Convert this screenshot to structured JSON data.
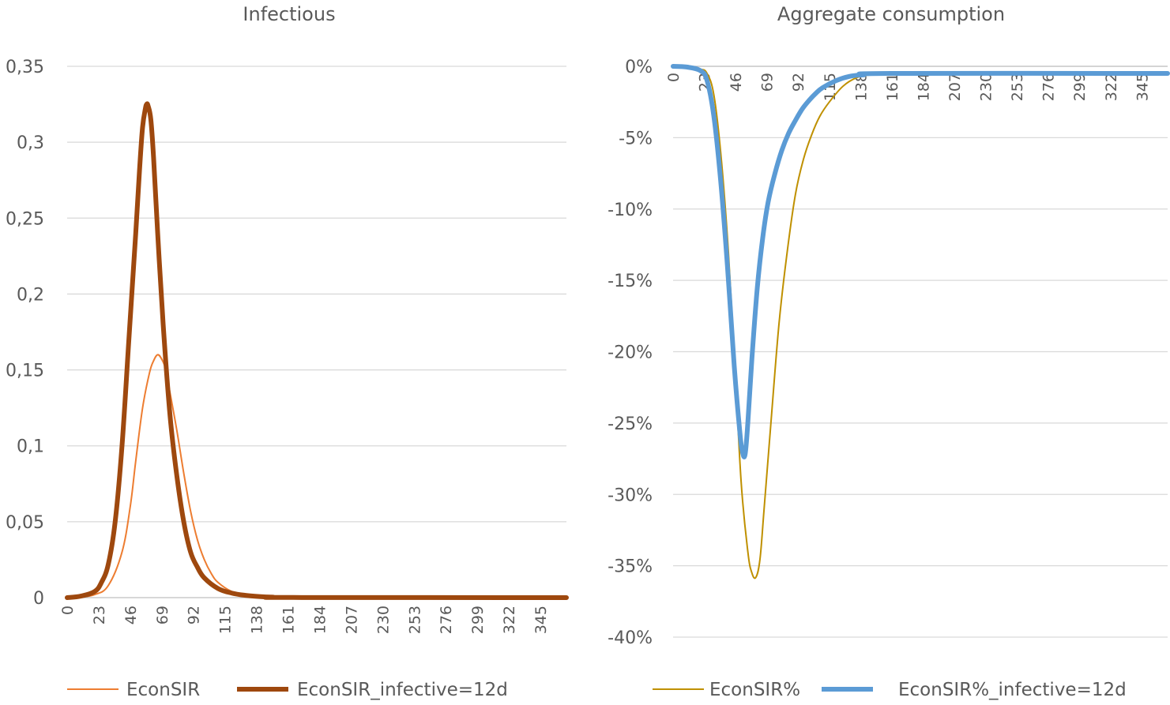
{
  "chart_data": [
    {
      "type": "line",
      "title": "Infectious",
      "xlabel": "",
      "ylabel": "",
      "xlim": [
        0,
        364
      ],
      "ylim": [
        0,
        0.35
      ],
      "yticks": [
        0,
        0.05,
        0.1,
        0.15,
        0.2,
        0.25,
        0.3,
        0.35
      ],
      "ytick_labels": [
        "0",
        "0,05",
        "0,1",
        "0,15",
        "0,2",
        "0,25",
        "0,3",
        "0,35"
      ],
      "xtick_labels": [
        "0",
        "23",
        "46",
        "69",
        "92",
        "115",
        "138",
        "161",
        "184",
        "207",
        "230",
        "253",
        "276",
        "299",
        "322",
        "345"
      ],
      "xtick_values": [
        0,
        23,
        46,
        69,
        92,
        115,
        138,
        161,
        184,
        207,
        230,
        253,
        276,
        299,
        322,
        345
      ],
      "grid": true,
      "legend_position": "bottom",
      "series": [
        {
          "name": "EconSIR",
          "color": "#ED7D31",
          "width": 2,
          "points": [
            [
              0,
              0
            ],
            [
              10,
              0.0005
            ],
            [
              20,
              0.002
            ],
            [
              30,
              0.008
            ],
            [
              40,
              0.03
            ],
            [
              46,
              0.06
            ],
            [
              50,
              0.09
            ],
            [
              55,
              0.125
            ],
            [
              60,
              0.148
            ],
            [
              63,
              0.156
            ],
            [
              66,
              0.16
            ],
            [
              69,
              0.157
            ],
            [
              72,
              0.15
            ],
            [
              75,
              0.135
            ],
            [
              80,
              0.11
            ],
            [
              85,
              0.082
            ],
            [
              90,
              0.057
            ],
            [
              95,
              0.038
            ],
            [
              100,
              0.025
            ],
            [
              105,
              0.016
            ],
            [
              110,
              0.01
            ],
            [
              120,
              0.004
            ],
            [
              130,
              0.0018
            ],
            [
              140,
              0.0008
            ],
            [
              150,
              0.0003
            ],
            [
              160,
              0.0001
            ],
            [
              364,
              0
            ]
          ]
        },
        {
          "name": "EconSIR_infective=12d",
          "color": "#9E480E",
          "width": 6,
          "points": [
            [
              0,
              0
            ],
            [
              10,
              0.001
            ],
            [
              20,
              0.004
            ],
            [
              25,
              0.01
            ],
            [
              30,
              0.022
            ],
            [
              35,
              0.05
            ],
            [
              40,
              0.1
            ],
            [
              45,
              0.17
            ],
            [
              50,
              0.24
            ],
            [
              53,
              0.285
            ],
            [
              55,
              0.31
            ],
            [
              57,
              0.322
            ],
            [
              58,
              0.325
            ],
            [
              59,
              0.324
            ],
            [
              61,
              0.315
            ],
            [
              63,
              0.29
            ],
            [
              66,
              0.24
            ],
            [
              70,
              0.18
            ],
            [
              75,
              0.12
            ],
            [
              80,
              0.08
            ],
            [
              85,
              0.05
            ],
            [
              90,
              0.03
            ],
            [
              95,
              0.02
            ],
            [
              100,
              0.013
            ],
            [
              110,
              0.006
            ],
            [
              120,
              0.003
            ],
            [
              130,
              0.0015
            ],
            [
              140,
              0.0007
            ],
            [
              150,
              0.0003
            ],
            [
              165,
              0.0001
            ],
            [
              364,
              0
            ]
          ]
        }
      ]
    },
    {
      "type": "line",
      "title": "Aggregate consumption",
      "xlabel": "",
      "ylabel": "",
      "xlim": [
        0,
        364
      ],
      "ylim": [
        -0.4,
        0
      ],
      "yticks": [
        0,
        -0.05,
        -0.1,
        -0.15,
        -0.2,
        -0.25,
        -0.3,
        -0.35,
        -0.4
      ],
      "ytick_labels": [
        "0%",
        "-5%",
        "-10%",
        "-15%",
        "-20%",
        "-25%",
        "-30%",
        "-35%",
        "-40%"
      ],
      "xtick_labels": [
        "0",
        "23",
        "46",
        "69",
        "92",
        "115",
        "138",
        "161",
        "184",
        "207",
        "230",
        "253",
        "276",
        "299",
        "322",
        "345"
      ],
      "xtick_values": [
        0,
        23,
        46,
        69,
        92,
        115,
        138,
        161,
        184,
        207,
        230,
        253,
        276,
        299,
        322,
        345
      ],
      "grid": true,
      "legend_position": "bottom",
      "series": [
        {
          "name": "EconSIR%",
          "color": "#BF9000",
          "width": 2,
          "points": [
            [
              0,
              0
            ],
            [
              10,
              -0.0005
            ],
            [
              20,
              -0.002
            ],
            [
              25,
              -0.005
            ],
            [
              30,
              -0.02
            ],
            [
              35,
              -0.06
            ],
            [
              40,
              -0.12
            ],
            [
              45,
              -0.2
            ],
            [
              50,
              -0.29
            ],
            [
              55,
              -0.34
            ],
            [
              58,
              -0.355
            ],
            [
              61,
              -0.358
            ],
            [
              64,
              -0.345
            ],
            [
              67,
              -0.31
            ],
            [
              72,
              -0.25
            ],
            [
              78,
              -0.18
            ],
            [
              84,
              -0.13
            ],
            [
              90,
              -0.09
            ],
            [
              96,
              -0.065
            ],
            [
              102,
              -0.048
            ],
            [
              108,
              -0.035
            ],
            [
              115,
              -0.025
            ],
            [
              125,
              -0.014
            ],
            [
              135,
              -0.008
            ],
            [
              145,
              -0.006
            ],
            [
              160,
              -0.005
            ],
            [
              364,
              -0.005
            ]
          ]
        },
        {
          "name": "EconSIR%_infective=12d",
          "color": "#5B9BD5",
          "width": 6,
          "points": [
            [
              0,
              0
            ],
            [
              10,
              -0.0005
            ],
            [
              20,
              -0.003
            ],
            [
              25,
              -0.01
            ],
            [
              30,
              -0.035
            ],
            [
              35,
              -0.08
            ],
            [
              40,
              -0.14
            ],
            [
              45,
              -0.21
            ],
            [
              49,
              -0.255
            ],
            [
              51,
              -0.27
            ],
            [
              53,
              -0.272
            ],
            [
              55,
              -0.25
            ],
            [
              58,
              -0.205
            ],
            [
              62,
              -0.155
            ],
            [
              66,
              -0.12
            ],
            [
              70,
              -0.095
            ],
            [
              75,
              -0.075
            ],
            [
              80,
              -0.059
            ],
            [
              85,
              -0.047
            ],
            [
              90,
              -0.038
            ],
            [
              95,
              -0.03
            ],
            [
              100,
              -0.024
            ],
            [
              105,
              -0.019
            ],
            [
              110,
              -0.015
            ],
            [
              120,
              -0.01
            ],
            [
              130,
              -0.007
            ],
            [
              140,
              -0.006
            ],
            [
              160,
              -0.005
            ],
            [
              364,
              -0.005
            ]
          ]
        }
      ]
    }
  ]
}
